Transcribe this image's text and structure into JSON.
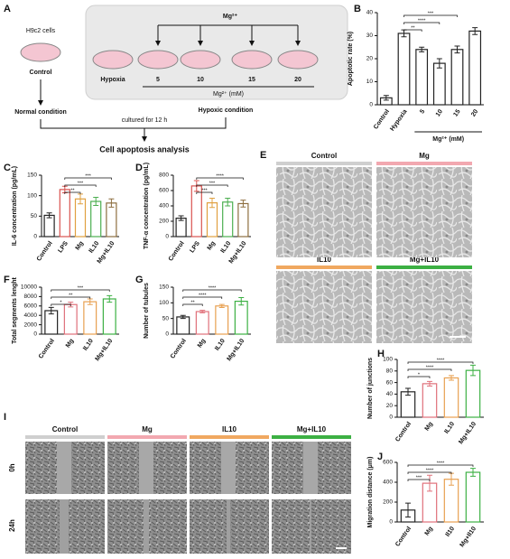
{
  "schematic": {
    "label": "A",
    "cells": "H9c2 cells",
    "control": "Control",
    "mg": "Mg²⁺",
    "hypoxia": "Hypoxia",
    "doses": [
      "5",
      "10",
      "15",
      "20"
    ],
    "dose_unit": "Mg²⁺ (mM)",
    "normal": "Normal condition",
    "hypoxic": "Hypoxic condition",
    "cultured": "cultured for 12 h",
    "analysis": "Cell apoptosis analysis"
  },
  "image_panel_e": {
    "label": "E",
    "titles": [
      "Control",
      "Mg",
      "IL10",
      "Mg+IL10"
    ]
  },
  "image_panel_i": {
    "label": "I",
    "titles": [
      "Control",
      "Mg",
      "IL10",
      "Mg+IL10"
    ],
    "rows": [
      "0h",
      "24h"
    ]
  },
  "chart_data": [
    {
      "type": "bar",
      "label": "B",
      "y_label": "Apoptotic rate (%)",
      "x_label": "Mg²⁺ (mM)",
      "categories": [
        "Control",
        "Hypoxia",
        "5",
        "10",
        "15",
        "20"
      ],
      "values": [
        3,
        31,
        24,
        18,
        24,
        32
      ],
      "errors": [
        1,
        1.5,
        1,
        2,
        1.5,
        1.5
      ],
      "colors": [
        "#222222",
        "#222222",
        "#222222",
        "#222222",
        "#222222",
        "#222222"
      ],
      "ylim": [
        0,
        40
      ],
      "yticks": [
        0,
        10,
        20,
        30,
        40
      ],
      "significance": [
        "**",
        "****",
        "***"
      ]
    },
    {
      "type": "bar",
      "label": "C",
      "y_label": "IL-6 concentration (pg/mL)",
      "categories": [
        "Control",
        "LPS",
        "Mg",
        "IL10",
        "Mg+IL10"
      ],
      "values": [
        52,
        115,
        92,
        86,
        82
      ],
      "errors": [
        6,
        8,
        12,
        10,
        10
      ],
      "colors": [
        "#222222",
        "#d9534f",
        "#e0a040",
        "#4caf50",
        "#8d6e3f"
      ],
      "ylim": [
        0,
        150
      ],
      "yticks": [
        0,
        50,
        100,
        150
      ],
      "significance": [
        "**",
        "***",
        "***"
      ]
    },
    {
      "type": "bar",
      "label": "D",
      "y_label": "TNF-α concentration (pg/mL)",
      "categories": [
        "Control",
        "LPS",
        "Mg",
        "IL10",
        "Mg+IL10"
      ],
      "values": [
        240,
        660,
        440,
        450,
        430
      ],
      "errors": [
        30,
        70,
        60,
        50,
        45
      ],
      "colors": [
        "#222222",
        "#d9534f",
        "#e0a040",
        "#4caf50",
        "#8d6e3f"
      ],
      "ylim": [
        0,
        800
      ],
      "yticks": [
        0,
        200,
        400,
        600,
        800
      ],
      "significance": [
        "***",
        "***",
        "****"
      ]
    },
    {
      "type": "bar",
      "label": "F",
      "y_label": "Total segments lenght",
      "categories": [
        "Control",
        "Mg",
        "IL10",
        "Mg+IL10"
      ],
      "values": [
        5000,
        6300,
        6900,
        7500
      ],
      "errors": [
        700,
        500,
        600,
        700
      ],
      "colors": [
        "#222222",
        "#e0707a",
        "#e8a050",
        "#3cb043"
      ],
      "ylim": [
        0,
        10000
      ],
      "yticks": [
        0,
        2000,
        4000,
        6000,
        8000,
        10000
      ],
      "significance": [
        "*",
        "**",
        "***"
      ]
    },
    {
      "type": "bar",
      "label": "G",
      "y_label": "Number of tubules",
      "categories": [
        "Control",
        "Mg",
        "IL10",
        "Mg+IL10"
      ],
      "values": [
        55,
        72,
        90,
        105
      ],
      "errors": [
        5,
        4,
        5,
        12
      ],
      "colors": [
        "#222222",
        "#e0707a",
        "#e8a050",
        "#3cb043"
      ],
      "ylim": [
        0,
        150
      ],
      "yticks": [
        0,
        50,
        100,
        150
      ],
      "significance": [
        "**",
        "****",
        "****"
      ]
    },
    {
      "type": "bar",
      "label": "H",
      "y_label": "Number of junctions",
      "categories": [
        "Control",
        "Mg",
        "IL10",
        "Mg+IL10"
      ],
      "values": [
        44,
        58,
        68,
        81
      ],
      "errors": [
        6,
        4,
        4,
        9
      ],
      "colors": [
        "#222222",
        "#e0707a",
        "#e8a050",
        "#3cb043"
      ],
      "ylim": [
        0,
        100
      ],
      "yticks": [
        0,
        20,
        40,
        60,
        80,
        100
      ],
      "significance": [
        "*",
        "****",
        "****"
      ]
    },
    {
      "type": "bar",
      "label": "J",
      "y_label": "Migration distance (μm)",
      "categories": [
        "Control",
        "Mg",
        "Il10",
        "Mg+Il10"
      ],
      "values": [
        120,
        390,
        430,
        500
      ],
      "errors": [
        70,
        80,
        60,
        40
      ],
      "colors": [
        "#222222",
        "#e0707a",
        "#e8a050",
        "#3cb043"
      ],
      "ylim": [
        0,
        600
      ],
      "yticks": [
        0,
        200,
        400,
        600
      ],
      "significance": [
        "***",
        "****",
        "****"
      ]
    }
  ]
}
